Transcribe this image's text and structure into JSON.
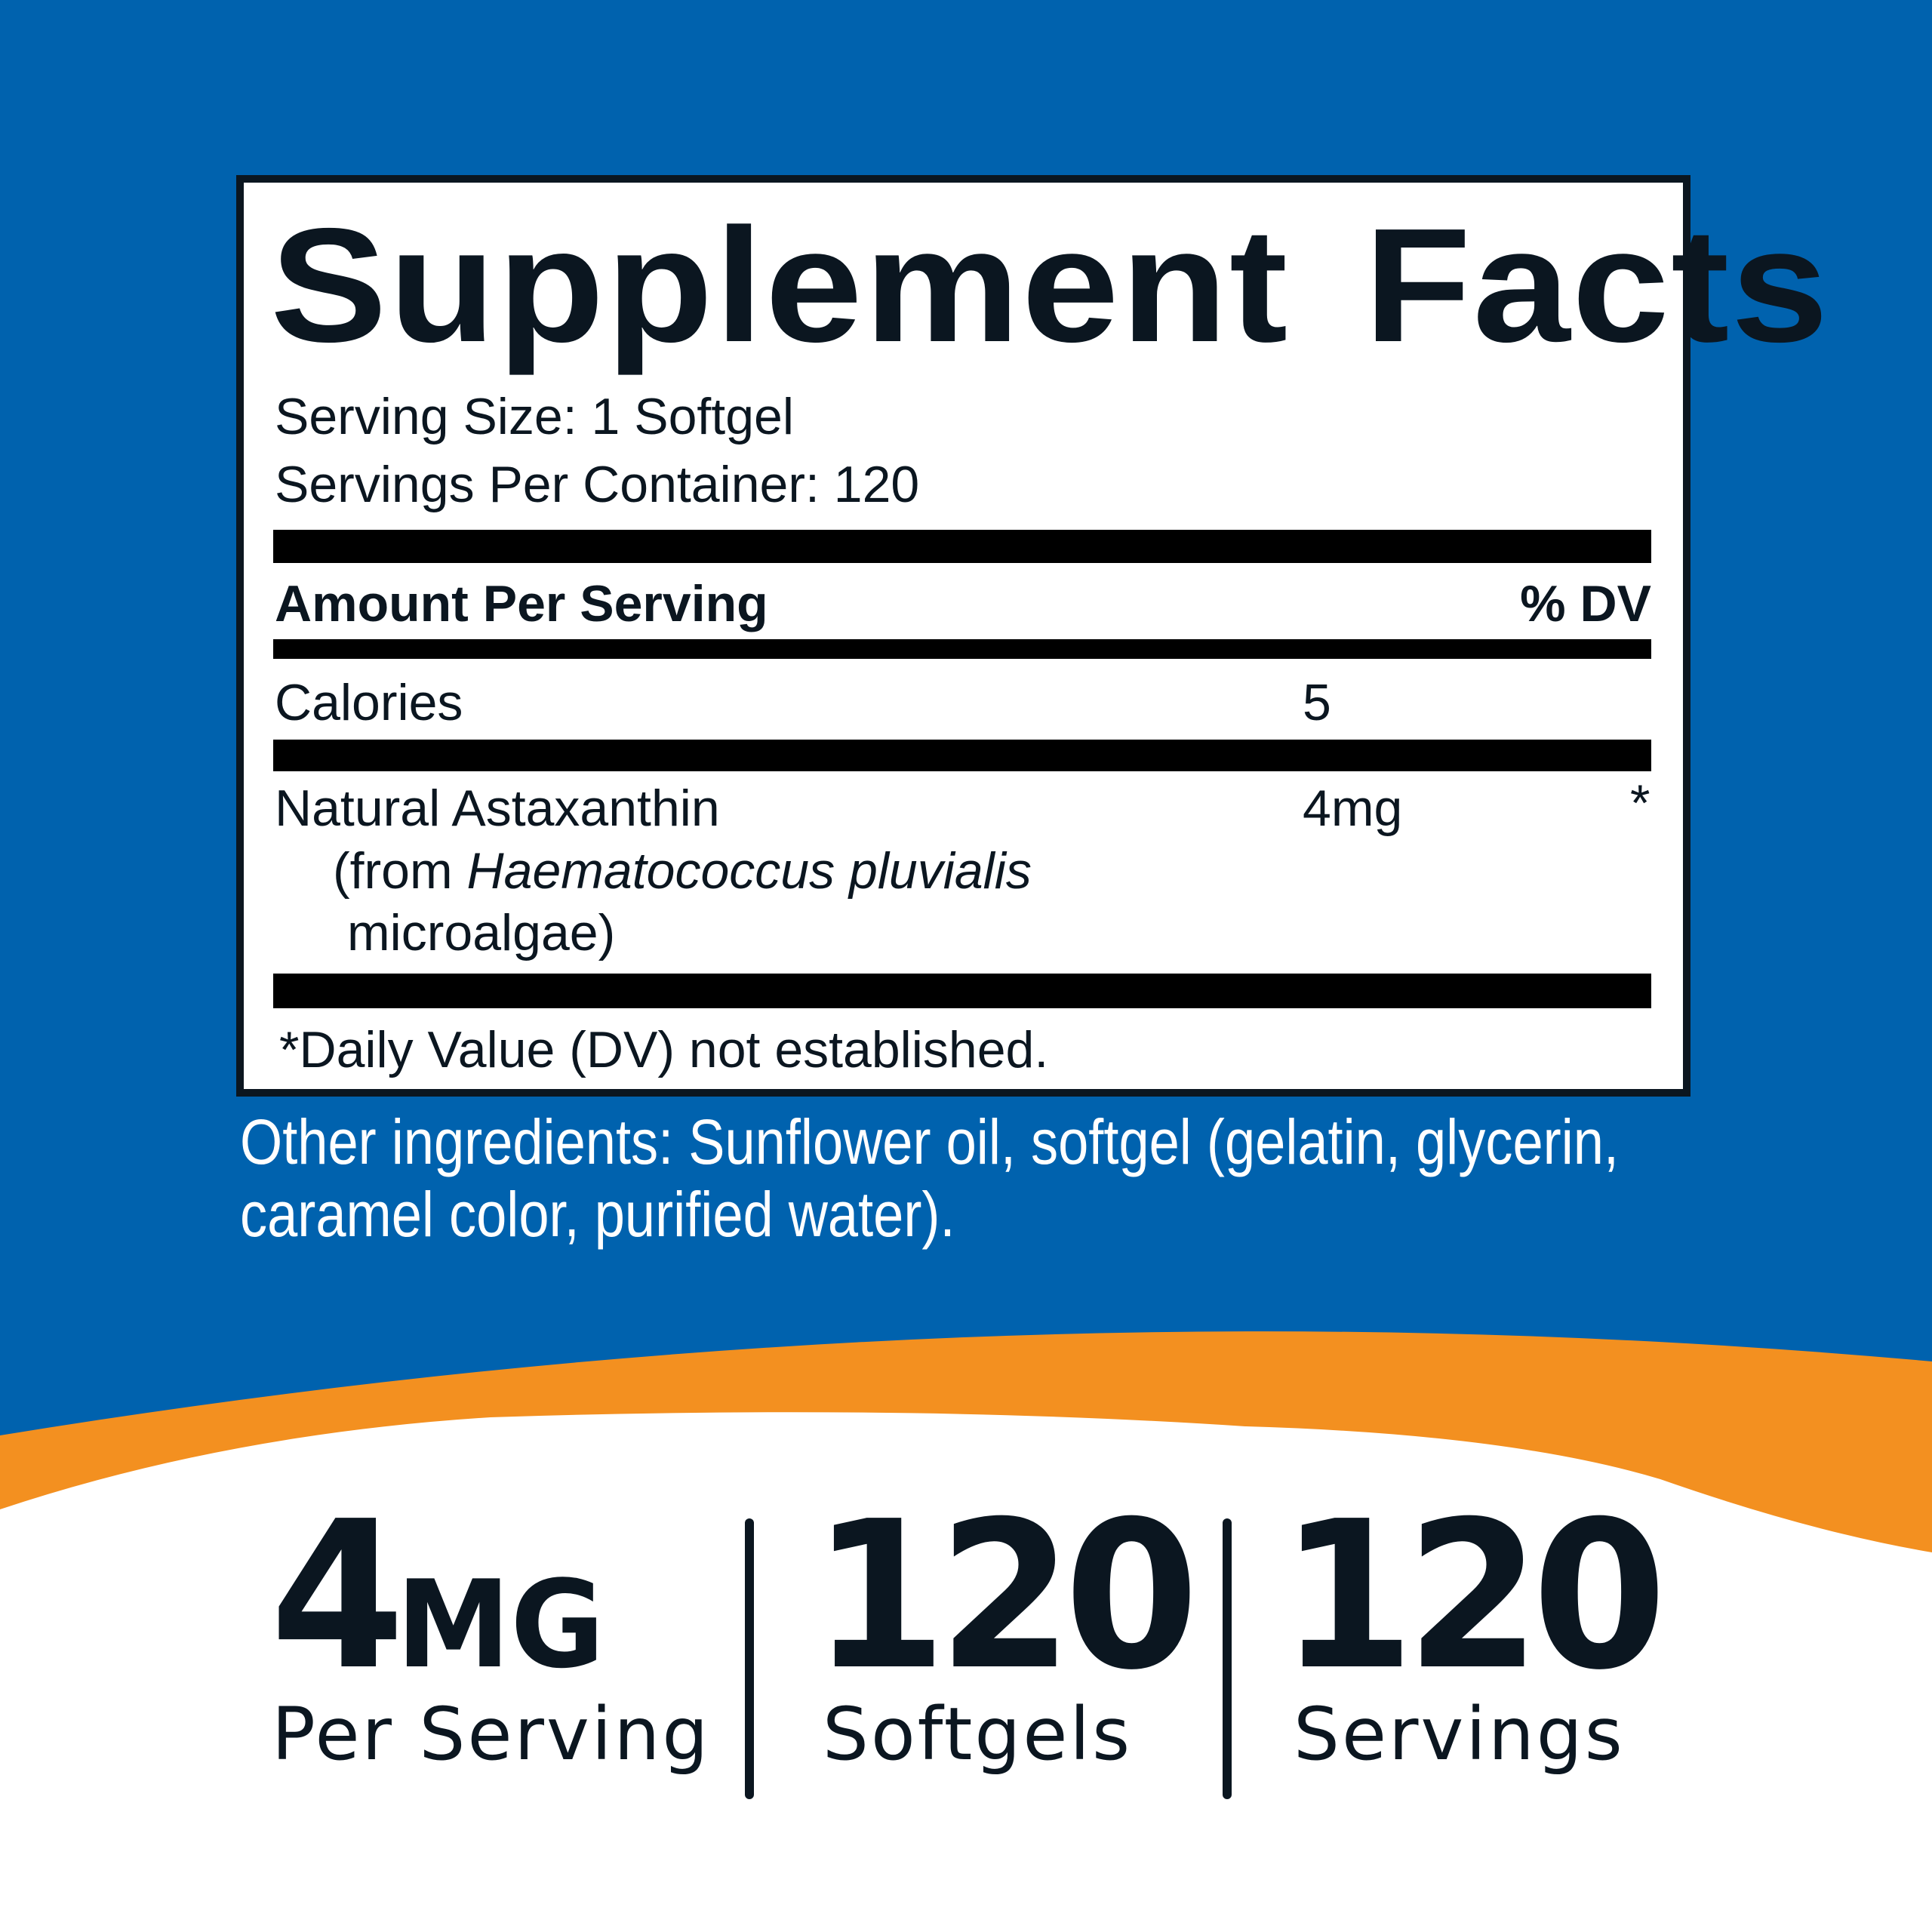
{
  "colors": {
    "background_blue": "#0062ae",
    "accent_orange": "#f39020",
    "text_dark": "#0b1620"
  },
  "facts": {
    "title": "Supplement Facts",
    "serving_size": "Serving Size: 1 Softgel",
    "servings_per_container": "Servings Per Container: 120",
    "header_amount": "Amount Per Serving",
    "header_dv": "% DV",
    "rows": [
      {
        "name": "Calories",
        "amount": "5",
        "dv": ""
      },
      {
        "name": "Natural Astaxanthin",
        "source_prefix": "(from ",
        "source_italic": "Haematococcus pluvialis",
        "source_suffix": "microalgae)",
        "amount": "4mg",
        "dv": "*"
      }
    ],
    "footnote": "*Daily Value (DV) not established."
  },
  "other_ingredients": {
    "line1": "Other ingredients: Sunflower oil, softgel (gelatin, glycerin,",
    "line2": "caramel color, purified water)."
  },
  "highlights": [
    {
      "value": "4",
      "unit": "MG",
      "label": "Per Serving"
    },
    {
      "value": "120",
      "label": "Softgels"
    },
    {
      "value": "120",
      "label": "Servings"
    }
  ]
}
